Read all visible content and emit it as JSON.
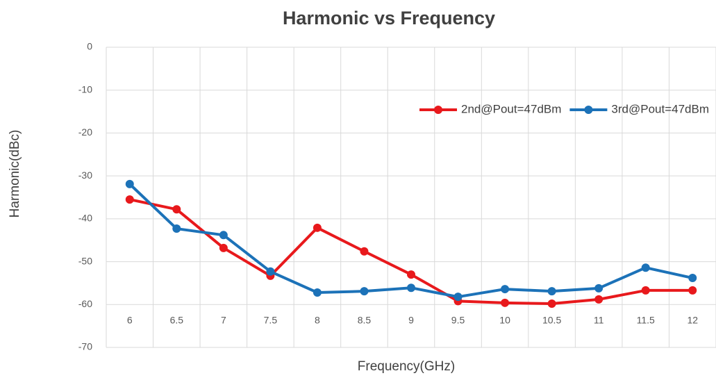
{
  "chart_data": {
    "type": "line",
    "title": "Harmonic vs Frequency",
    "x_label": "Frequency(GHz)",
    "y_label": "Harmonic(dBc)",
    "categories": [
      "6",
      "6.5",
      "7",
      "7.5",
      "8",
      "8.5",
      "9",
      "9.5",
      "10",
      "10.5",
      "11",
      "11.5",
      "12"
    ],
    "series": [
      {
        "name": "2nd@Pout=47dBm",
        "color": "#e8191c",
        "values": [
          -35.5,
          -37.8,
          -46.8,
          -53.3,
          -42.1,
          -47.6,
          -53,
          -59.2,
          -59.6,
          -59.8,
          -58.8,
          -56.7,
          -56.7
        ]
      },
      {
        "name": "3rd@Pout=47dBm",
        "color": "#1c72b8",
        "values": [
          -31.9,
          -42.3,
          -43.8,
          -52.3,
          -57.2,
          -56.9,
          -56.1,
          -58.2,
          -56.4,
          -56.9,
          -56.2,
          -51.4,
          -53.8
        ]
      }
    ],
    "ylim": [
      -70,
      0
    ],
    "yticks": [
      0,
      -10,
      -20,
      -30,
      -40,
      -50,
      -60,
      -70
    ],
    "grid": true,
    "legend": "upper right"
  }
}
